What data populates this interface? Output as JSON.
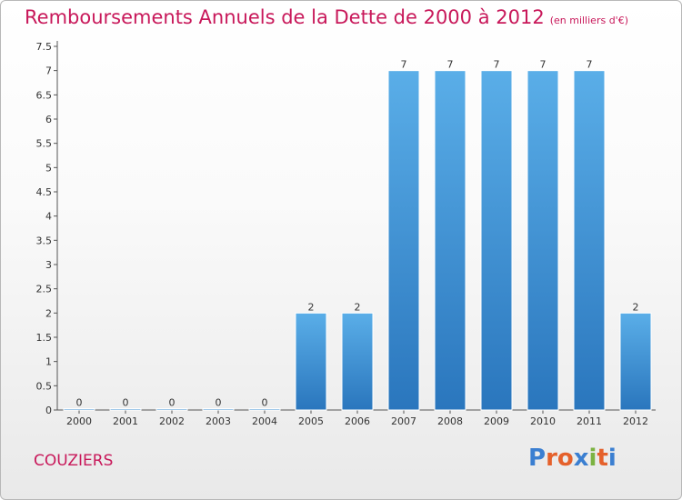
{
  "chart_data": {
    "type": "bar",
    "title": "Remboursements Annuels de la Dette de 2000 à 2012",
    "subtitle": "(en milliers d'€)",
    "categories": [
      "2000",
      "2001",
      "2002",
      "2003",
      "2004",
      "2005",
      "2006",
      "2007",
      "2008",
      "2009",
      "2010",
      "2011",
      "2012"
    ],
    "values": [
      0,
      0,
      0,
      0,
      0,
      2,
      2,
      7,
      7,
      7,
      7,
      7,
      2
    ],
    "data_labels": [
      "0",
      "0",
      "0",
      "0",
      "0",
      "2",
      "2",
      "7",
      "7",
      "7",
      "7",
      "7",
      "2"
    ],
    "ylim": [
      0,
      7.5
    ],
    "yticks": [
      {
        "value": 0,
        "label": "0"
      },
      {
        "value": 0.5,
        "label": "0.5"
      },
      {
        "value": 1,
        "label": "1"
      },
      {
        "value": 1.5,
        "label": "1.5"
      },
      {
        "value": 2,
        "label": "2"
      },
      {
        "value": 2.5,
        "label": "2.5"
      },
      {
        "value": 3,
        "label": "3"
      },
      {
        "value": 3.5,
        "label": "3.5"
      },
      {
        "value": 4,
        "label": "4"
      },
      {
        "value": 4.5,
        "label": "4.5"
      },
      {
        "value": 5,
        "label": "5"
      },
      {
        "value": 5.5,
        "label": "5.5"
      },
      {
        "value": 6,
        "label": "6"
      },
      {
        "value": 6.5,
        "label": "6.5"
      },
      {
        "value": 7,
        "label": "7"
      },
      {
        "value": 7.5,
        "label": "7.5"
      }
    ],
    "xlabel": "",
    "ylabel": "",
    "grid": false,
    "bar_color": "#3d8fd6"
  },
  "footer": {
    "commune": "COUZIERS",
    "logo": "Proxiti",
    "logo_colors": [
      "#3b7fd1",
      "#e5612b",
      "#e5612b",
      "#3b7fd1",
      "#7cb342",
      "#e5612b",
      "#3b7fd1"
    ]
  }
}
